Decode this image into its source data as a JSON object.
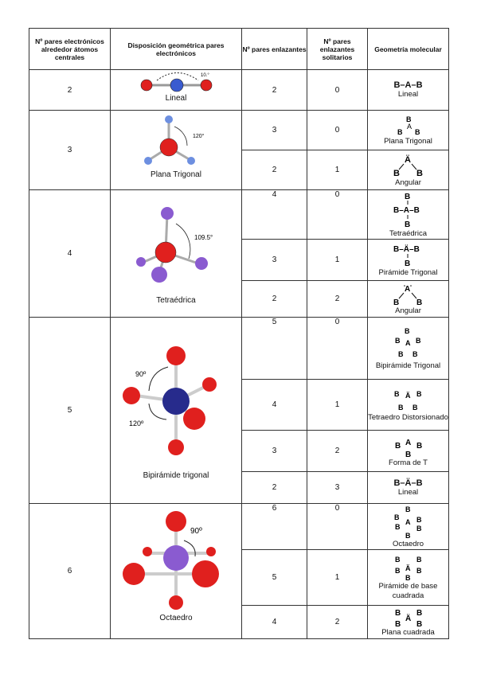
{
  "headers": {
    "pairs": "Nº pares electrónicos alrededor átomos centrales",
    "disposition": "Disposición geométrica pares electrónicos",
    "bonding": "Nº pares enlazantes",
    "lone": "Nº pares enlazantes solitarios",
    "geometry": "Geometría molecular"
  },
  "groups": [
    {
      "pairs": "2",
      "disposition": "Lineal",
      "angle": "10.°",
      "molecule_icon": "linear-molecule-model"
    },
    {
      "pairs": "3",
      "disposition": "Plana Trigonal",
      "angle": "120°",
      "molecule_icon": "trigonal-planar-molecule-model"
    },
    {
      "pairs": "4",
      "disposition": "Tetraédrica",
      "angle": "109.5°",
      "molecule_icon": "tetrahedral-molecule-model"
    },
    {
      "pairs": "5",
      "disposition": "Bipirámide trigonal",
      "angle_top": "90º",
      "angle_bottom": "120º",
      "molecule_icon": "trigonal-bipyramidal-molecule-model"
    },
    {
      "pairs": "6",
      "disposition": "Octaedro",
      "angle": "90º",
      "molecule_icon": "octahedral-molecule-model"
    }
  ],
  "rows": [
    {
      "bonding": "2",
      "lone": "0",
      "formula": "B–A–B",
      "geometry": "Lineal"
    },
    {
      "bonding": "3",
      "lone": "0",
      "formula": "",
      "geometry": "Plana Trigonal"
    },
    {
      "bonding": "2",
      "lone": "1",
      "formula": "",
      "geometry": "Angular"
    },
    {
      "bonding": "4",
      "lone": "0",
      "formula": "",
      "geometry": "Tetraédrica"
    },
    {
      "bonding": "3",
      "lone": "1",
      "formula": "",
      "geometry": "Pirámide Trigonal"
    },
    {
      "bonding": "2",
      "lone": "2",
      "formula": "",
      "geometry": "Angular"
    },
    {
      "bonding": "5",
      "lone": "0",
      "formula": "",
      "geometry": "Bipirámide Trigonal"
    },
    {
      "bonding": "4",
      "lone": "1",
      "formula": "",
      "geometry": "Tetraedro Distorsionado"
    },
    {
      "bonding": "3",
      "lone": "2",
      "formula": "",
      "geometry": "Forma de T"
    },
    {
      "bonding": "2",
      "lone": "3",
      "formula": "B–Ä–B",
      "geometry": "Lineal"
    },
    {
      "bonding": "6",
      "lone": "0",
      "formula": "",
      "geometry": "Octaedro"
    },
    {
      "bonding": "5",
      "lone": "1",
      "formula": "",
      "geometry": "Pirámide de base cuadrada"
    },
    {
      "bonding": "4",
      "lone": "2",
      "formula": "",
      "geometry": "Plana cuadrada"
    }
  ],
  "symbols": {
    "central": "A",
    "ligand": "B"
  },
  "colors": {
    "red": "#e0201e",
    "blue": "#3a5bd0",
    "purple": "#8a5bd0",
    "navy": "#272b8c",
    "lightblue": "#6d8fe0"
  }
}
